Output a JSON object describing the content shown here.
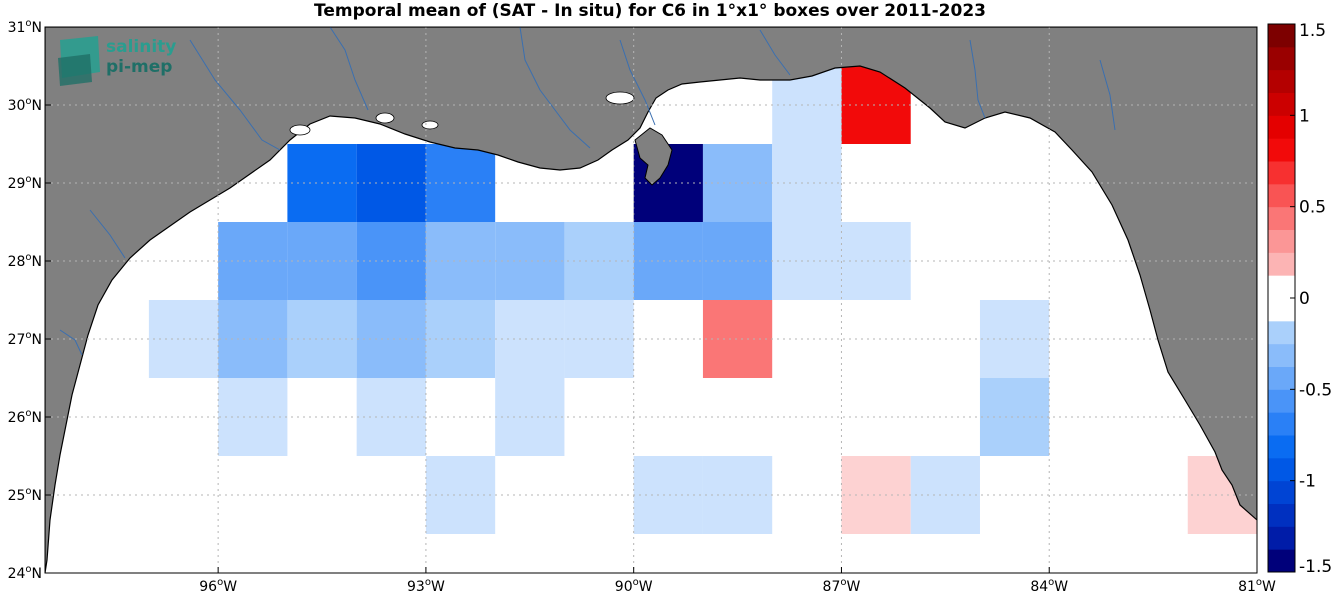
{
  "title": "Temporal mean of (SAT - In situ) for C6 in 1°x1° boxes over 2011-2023",
  "logo": {
    "line1": "salinity",
    "line2": "pi-mep"
  },
  "colors": {
    "land": "#808080",
    "coast": "#000000",
    "rivers": "#3a6fb0",
    "grid": "#b5b5b5"
  },
  "map": {
    "lon_range": [
      -98.5,
      -81
    ],
    "lat_range": [
      24,
      31
    ],
    "x_ticks": [
      {
        "lon": -96,
        "deg": "96",
        "hemi": "W"
      },
      {
        "lon": -93,
        "deg": "93",
        "hemi": "W"
      },
      {
        "lon": -90,
        "deg": "90",
        "hemi": "W"
      },
      {
        "lon": -87,
        "deg": "87",
        "hemi": "W"
      },
      {
        "lon": -84,
        "deg": "84",
        "hemi": "W"
      },
      {
        "lon": -81,
        "deg": "81",
        "hemi": "W"
      }
    ],
    "y_ticks": [
      {
        "lat": 24,
        "deg": "24",
        "hemi": "N"
      },
      {
        "lat": 25,
        "deg": "25",
        "hemi": "N"
      },
      {
        "lat": 26,
        "deg": "26",
        "hemi": "N"
      },
      {
        "lat": 27,
        "deg": "27",
        "hemi": "N"
      },
      {
        "lat": 28,
        "deg": "28",
        "hemi": "N"
      },
      {
        "lat": 29,
        "deg": "29",
        "hemi": "N"
      },
      {
        "lat": 30,
        "deg": "30",
        "hemi": "N"
      },
      {
        "lat": 31,
        "deg": "31",
        "hemi": "N"
      }
    ]
  },
  "colorbar": {
    "vmin": -1.5,
    "vmax": 1.5,
    "ticks": [
      {
        "value": 1.5,
        "label": "1.5"
      },
      {
        "value": 1,
        "label": "1"
      },
      {
        "value": 0.5,
        "label": "0.5"
      },
      {
        "value": 0,
        "label": "0"
      },
      {
        "value": -0.5,
        "label": "-0.5"
      },
      {
        "value": -1,
        "label": "-1"
      },
      {
        "value": -1.5,
        "label": "-1.5"
      }
    ]
  },
  "boxes": [
    {
      "lon": -94.5,
      "lat": 29,
      "value": -0.85
    },
    {
      "lon": -93.5,
      "lat": 29,
      "value": -0.95
    },
    {
      "lon": -92.5,
      "lat": 29,
      "value": -0.7
    },
    {
      "lon": -89.5,
      "lat": 29,
      "value": -1.4
    },
    {
      "lon": -88.5,
      "lat": 29,
      "value": -0.35
    },
    {
      "lon": -87.5,
      "lat": 29,
      "value": -0.12
    },
    {
      "lon": -86.5,
      "lat": 30,
      "value": 0.85
    },
    {
      "lon": -87.5,
      "lat": 30,
      "value": -0.12
    },
    {
      "lon": -95.5,
      "lat": 28,
      "value": -0.45
    },
    {
      "lon": -94.5,
      "lat": 28,
      "value": -0.5
    },
    {
      "lon": -93.5,
      "lat": 28,
      "value": -0.6
    },
    {
      "lon": -92.5,
      "lat": 28,
      "value": -0.35
    },
    {
      "lon": -91.5,
      "lat": 28,
      "value": -0.3
    },
    {
      "lon": -90.5,
      "lat": 28,
      "value": -0.22
    },
    {
      "lon": -89.5,
      "lat": 28,
      "value": -0.45
    },
    {
      "lon": -88.5,
      "lat": 28,
      "value": -0.45
    },
    {
      "lon": -87.5,
      "lat": 28,
      "value": -0.12
    },
    {
      "lon": -86.5,
      "lat": 28,
      "value": -0.12
    },
    {
      "lon": -96.5,
      "lat": 27,
      "value": -0.12
    },
    {
      "lon": -95.5,
      "lat": 27,
      "value": -0.35
    },
    {
      "lon": -94.5,
      "lat": 27,
      "value": -0.25
    },
    {
      "lon": -93.5,
      "lat": 27,
      "value": -0.35
    },
    {
      "lon": -92.5,
      "lat": 27,
      "value": -0.22
    },
    {
      "lon": -91.5,
      "lat": 27,
      "value": -0.12
    },
    {
      "lon": -90.5,
      "lat": 27,
      "value": -0.12
    },
    {
      "lon": -88.5,
      "lat": 27,
      "value": 0.4
    },
    {
      "lon": -84.5,
      "lat": 27,
      "value": -0.12
    },
    {
      "lon": -95.5,
      "lat": 26,
      "value": -0.12
    },
    {
      "lon": -93.5,
      "lat": 26,
      "value": -0.12
    },
    {
      "lon": -91.5,
      "lat": 26,
      "value": -0.12
    },
    {
      "lon": -84.5,
      "lat": 26,
      "value": -0.25
    },
    {
      "lon": -92.5,
      "lat": 25,
      "value": -0.12
    },
    {
      "lon": -89.5,
      "lat": 25,
      "value": -0.12
    },
    {
      "lon": -88.5,
      "lat": 25,
      "value": -0.12
    },
    {
      "lon": -86.5,
      "lat": 25,
      "value": 0.12
    },
    {
      "lon": -85.5,
      "lat": 25,
      "value": -0.12
    },
    {
      "lon": -81.5,
      "lat": 25,
      "value": 0.12
    }
  ]
}
